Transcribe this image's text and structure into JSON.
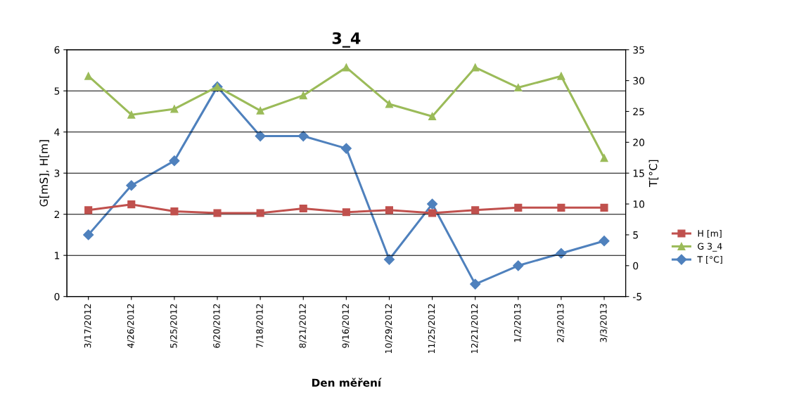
{
  "chart_data": {
    "type": "line",
    "title": "3_4",
    "xlabel": "Den měření",
    "ylabel": "G[mS], H[m]",
    "y2label": "T[°C]",
    "categories": [
      "3/17/2012",
      "4/26/2012",
      "5/25/2012",
      "6/20/2012",
      "7/18/2012",
      "8/21/2012",
      "9/16/2012",
      "10/29/2012",
      "11/25/2012",
      "12/21/2012",
      "1/2/2013",
      "2/3/2013",
      "3/3/2013"
    ],
    "series": [
      {
        "name": "H [m]",
        "color": "#c0504d",
        "marker": "square",
        "values": [
          2.1,
          2.24,
          2.07,
          2.03,
          2.03,
          2.14,
          2.05,
          2.1,
          2.03,
          2.1,
          2.16,
          2.16,
          2.16
        ]
      },
      {
        "name": "G 3_4",
        "color": "#9bbb59",
        "marker": "triangle",
        "values": [
          5.36,
          4.42,
          4.56,
          5.1,
          4.52,
          4.89,
          5.57,
          4.68,
          4.38,
          5.57,
          5.08,
          5.36,
          3.37
        ]
      },
      {
        "name": "T [°C]",
        "color": "#4f81bd",
        "marker": "diamond",
        "axis": "y2",
        "values": [
          5,
          13,
          17,
          29,
          21,
          21,
          19,
          1,
          10,
          -3,
          0,
          2,
          4
        ]
      }
    ],
    "ylim": [
      0,
      6
    ],
    "yticks": [
      0,
      1,
      2,
      3,
      4,
      5,
      6
    ],
    "y2lim": [
      -5,
      35
    ],
    "y2ticks": [
      -5,
      0,
      5,
      10,
      15,
      20,
      25,
      30,
      35
    ],
    "grid": "y",
    "legend": "right"
  }
}
